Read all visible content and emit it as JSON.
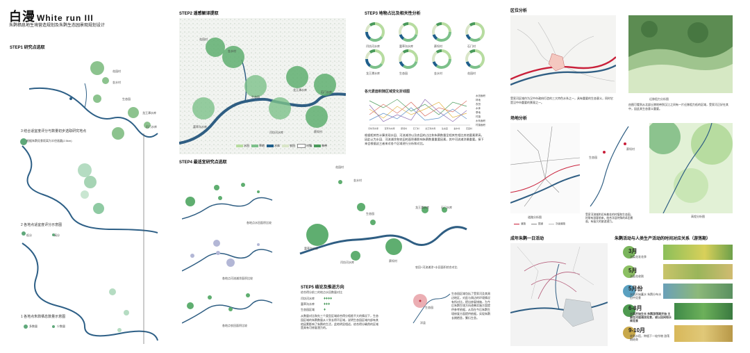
{
  "header": {
    "title_cn": "白漫",
    "title_en": "White run III",
    "subtitle": "朱鹮栖息地生境营造规划及朱鹮生态园景观规划设计"
  },
  "step1": {
    "title": "STEP1 研究点选取",
    "label3": "3 结合适宜度评分与数量初步选取研究地点",
    "label3b": "根据朱鹮觅食距离为半径画圆(2.5km)",
    "label2": "2 各地点适宜度评分示意图",
    "label2a": "低分",
    "label2b": "高分",
    "label1": "1 各地点朱鹮栖息数量示意图",
    "label1a": "多数量",
    "label1b": "少数量",
    "places": [
      "花园村",
      "金水村",
      "生态园",
      "龙王潭水库",
      "石门水库"
    ]
  },
  "step2": {
    "title": "STEP2 遥感解译提取",
    "places": [
      "花园村",
      "金水村",
      "生态园",
      "龙王潭水库",
      "石门水库",
      "富草沟水库",
      "闫坊河水库",
      "蔡坝村"
    ],
    "legend": [
      "水田",
      "草地",
      "水体",
      "农田",
      "村镇",
      "林带"
    ],
    "legend_colors": [
      "#b7dca0",
      "#7cc08a",
      "#1f5f8b",
      "#d9e6c8",
      "#ffffff",
      "#4a9a5b"
    ]
  },
  "step3": {
    "title": "STEP3 地物占比及相关性分析",
    "donuts": [
      "闫坊河水库",
      "富草沟水库",
      "蔡坝村",
      "石门村",
      "龙王潭水库",
      "生态园",
      "金水村",
      "花园村"
    ],
    "line_title": "各元素面积随区域变化折线图",
    "legend": [
      "水田面积",
      "林地",
      "农田",
      "水体",
      "草地",
      "村镇",
      "水系面积",
      "村镇面积"
    ],
    "x_labels": [
      "闫坊河水库",
      "富草沟水库",
      "蔡坝村",
      "石门村",
      "龙王潭水库",
      "生态园",
      "金水村",
      "花园村"
    ],
    "desc": "根据相关性计算发现水田、河流滩涂以及农田的占比和朱鹮数量呈相关性相比其他要素更高，因此认为水田、河流滩涂和农田的面积最影响朱鹮数量重要因素，其中河流滩涂最重要。接下来会根据这三者来对各个区域进行分析和对比。"
  },
  "step4": {
    "title": "STEP4 最适宜研究点选取",
    "places": [
      "花园村",
      "金水村",
      "生态园",
      "龙王潭水库",
      "石门水库",
      "富草沟水库",
      "闫坊河水库",
      "蔡坝村"
    ],
    "caption1": "各地点水田面积比较",
    "caption2": "各地点河流滩涂面积比较",
    "caption3": "各地点农田面积比较",
    "caption4": "农田+河流滩涂+水田面积综合对比"
  },
  "step5": {
    "title": "STEP5 结论及推进方向",
    "text1": "综合得分前三的地点水田数量对比",
    "items": [
      "闫坊河水库",
      "富草沟水库",
      "生态园区域"
    ],
    "text2": "从数量对比和先三个类型区域综合得分相差不大的情况下，生态园区域的朱鹮数量从十到长得不区域，说明生态园区域内部有其他因素影响了朱鹮的生活，此地明显相适，综合得分确然的区域是具有可修复潜力的。",
    "text3": "生态园区域包括了受家河及其周边地区，对此与周边的环境情况有所对比，提出修复措施，为今后朱鹮生境方向改善实施方案提供参考依据，从而在今后朱鹮生境修复方面提供依据，实现朱鹮长期栖息，繁衍生息。",
    "map_labels": [
      "生态园",
      "洋县"
    ]
  },
  "right": {
    "location_title": "区位分析",
    "location_cap1": "受家河区域作为汉中市政府打造的三大特色水系之一，具有重要的生态意义，同时它是汉中市重要的景观之一。",
    "location_cap2": "迁移阻力分析图",
    "location_cap2b": "由图可看到从北部丘陵地带到汉江之间有一片迁移阻力低的区域，受家河正好在其中，因此其生态意义重要。",
    "site_title": "场地分析",
    "site_cap1": "道路分析图",
    "site_cap1b": "受家河流域附近有着花的村镇和生态园，时常有游客前来，结合洋县特殊的禾田景观，有极大的旅游潜力。",
    "site_cap2": "高程分析图",
    "site_legend": [
      "道路",
      "国道",
      "次级道路"
    ],
    "site_labels": [
      "生态园",
      "蔡坝村"
    ],
    "day_title": "成年朱鹮一日活动",
    "activity_title": "朱鹮活动与人类生产活动的时间对应关系（游荡期）",
    "months": [
      {
        "month": "3月",
        "desc": "油菜花发花季"
      },
      {
        "month": "5月",
        "desc": "油菜花收割"
      },
      {
        "month": "5月份",
        "desc": "水田开始蓄水  朱鹮分布水田中觅食"
      },
      {
        "month": "6-8月",
        "desc": "水稻开始生长  朱鹮游荡期开始  主要在河道滩涂觅食，或以田间和水库觅食"
      },
      {
        "month": "9-10月",
        "desc": "收割水稻，种植下一轮作物  游荡期结束"
      }
    ],
    "month_colors": [
      "#7ab55c",
      "#8cc063",
      "#5aa0c0",
      "#4e9a50",
      "#c8a84a"
    ]
  }
}
